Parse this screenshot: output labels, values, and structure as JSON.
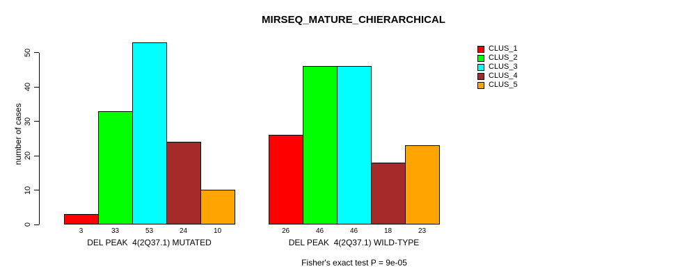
{
  "chart_data": {
    "type": "bar",
    "title": "MIRSEQ_MATURE_CHIERARCHICAL",
    "ylabel": "number of cases",
    "xlabel": "",
    "ylim": [
      0,
      50
    ],
    "yticks": [
      0,
      10,
      20,
      30,
      40,
      50
    ],
    "grid": false,
    "legend_position": "right",
    "bar_borders": "#000000",
    "categories": [
      "DEL PEAK  4(2Q37.1) MUTATED",
      "DEL PEAK  4(2Q37.1) WILD-TYPE"
    ],
    "series": [
      {
        "name": "CLUS_1",
        "color": "#FF0000",
        "values": [
          3,
          26
        ]
      },
      {
        "name": "CLUS_2",
        "color": "#00FF00",
        "values": [
          33,
          46
        ]
      },
      {
        "name": "CLUS_3",
        "color": "#00FFFF",
        "values": [
          53,
          46
        ]
      },
      {
        "name": "CLUS_4",
        "color": "#A52A2A",
        "values": [
          24,
          18
        ]
      },
      {
        "name": "CLUS_5",
        "color": "#FFA500",
        "values": [
          10,
          23
        ]
      }
    ],
    "bar_value_labels": [
      [
        3,
        33,
        53,
        24,
        10
      ],
      [
        26,
        46,
        46,
        18,
        23
      ]
    ],
    "annotation": "Fisher's exact test P = 9e-05"
  },
  "legend": {
    "items": [
      {
        "label": "CLUS_1",
        "color": "#FF0000"
      },
      {
        "label": "CLUS_2",
        "color": "#00FF00"
      },
      {
        "label": "CLUS_3",
        "color": "#00FFFF"
      },
      {
        "label": "CLUS_4",
        "color": "#A52A2A"
      },
      {
        "label": "CLUS_5",
        "color": "#FFA500"
      }
    ]
  }
}
